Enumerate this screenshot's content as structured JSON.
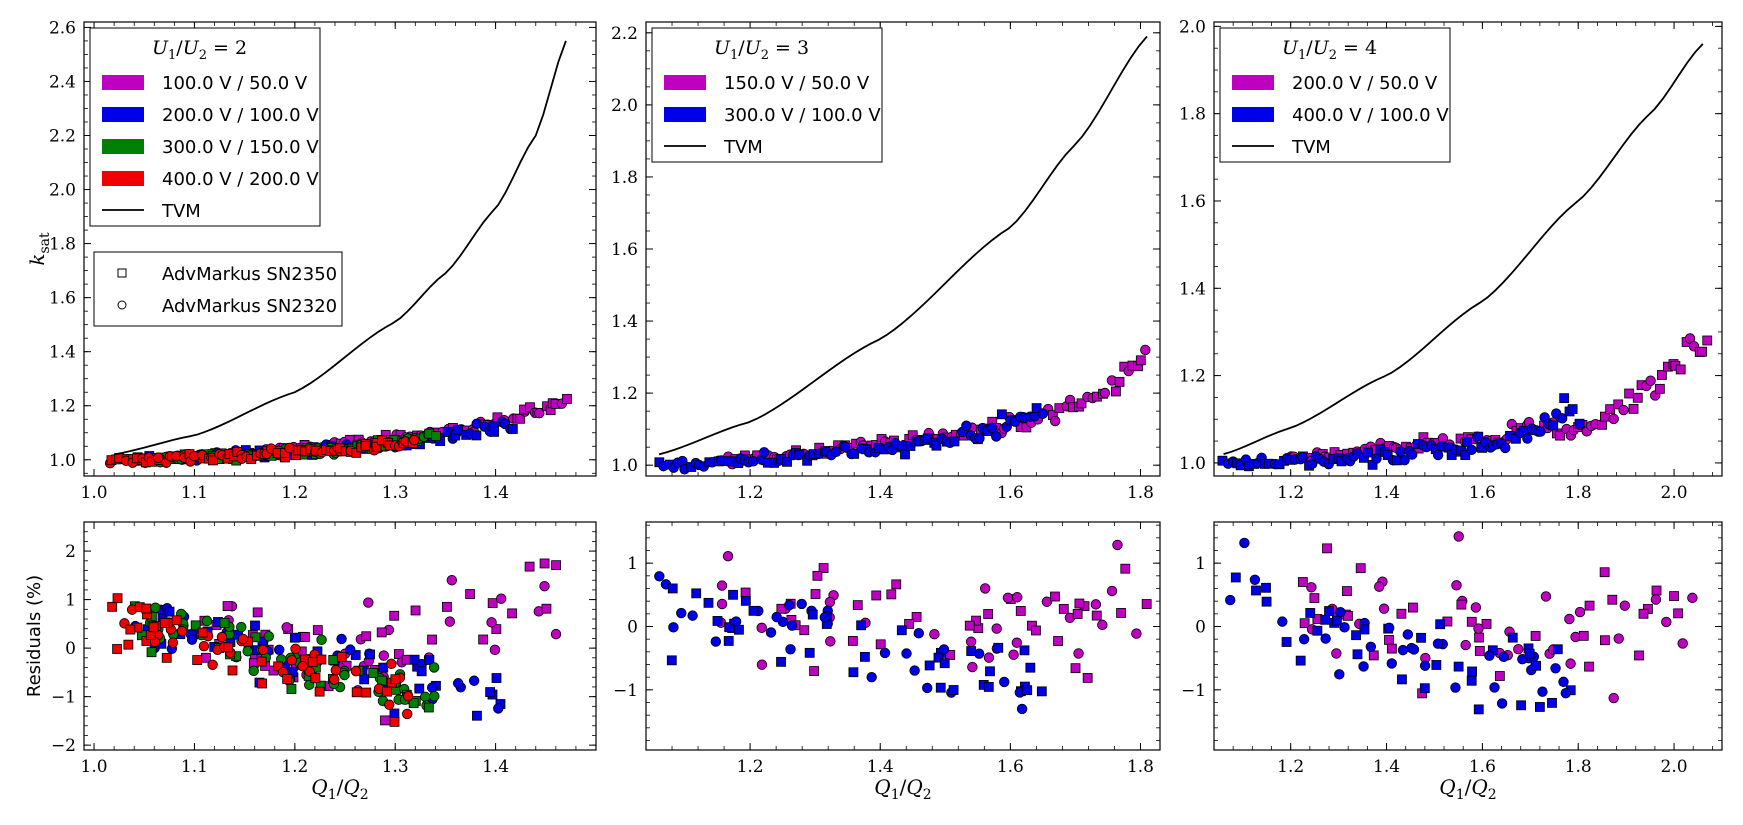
{
  "figure": {
    "xlabel": "Q1/Q2",
    "top_ylabel": "k_sat",
    "bottom_ylabel": "Residuals (%)",
    "marker_legend": {
      "items": [
        {
          "label": "AdvMarkus SN2350",
          "marker": "square"
        },
        {
          "label": "AdvMarkus SN2320",
          "marker": "circle"
        }
      ]
    }
  },
  "colors": {
    "magenta": "#c000c0",
    "blue": "#0000e8",
    "green": "#008000",
    "red": "#f00000",
    "tvm": "#000000"
  },
  "chart_data": [
    {
      "type": "scatter",
      "panel": "top-left",
      "title": "U1/U2 = 2",
      "xlim": [
        0.99,
        1.5
      ],
      "ylim": [
        0.94,
        2.62
      ],
      "xticks": [
        "1.0",
        "1.1",
        "1.2",
        "1.3",
        "1.4"
      ],
      "yticks": [
        "1.0",
        "1.2",
        "1.4",
        "1.6",
        "1.8",
        "2.0",
        "2.2",
        "2.4",
        "2.6"
      ],
      "ylabel": "k_sat",
      "legend_position": "top-left",
      "series": [
        {
          "name": "100.0 V / 50.0 V",
          "color": "magenta",
          "x_range": [
            1.1,
            1.47
          ],
          "shape": "magenta2"
        },
        {
          "name": "200.0 V / 100.0 V",
          "color": "blue",
          "x_range": [
            1.03,
            1.42
          ],
          "shape": "blue2"
        },
        {
          "name": "300.0 V / 150.0 V",
          "color": "green",
          "x_range": [
            1.04,
            1.34
          ],
          "shape": "green2"
        },
        {
          "name": "400.0 V / 200.0 V",
          "color": "red",
          "x_range": [
            1.015,
            1.32
          ],
          "shape": "red2"
        }
      ],
      "tvm": {
        "name": "TVM",
        "x": [
          1.02,
          1.1,
          1.2,
          1.3,
          1.35,
          1.4,
          1.44,
          1.47
        ],
        "y": [
          1.02,
          1.09,
          1.25,
          1.51,
          1.69,
          1.93,
          2.2,
          2.55
        ]
      }
    },
    {
      "type": "scatter",
      "panel": "top-middle",
      "title": "U1/U2 = 3",
      "xlim": [
        1.04,
        1.83
      ],
      "ylim": [
        0.97,
        2.23
      ],
      "xticks": [
        "1.2",
        "1.4",
        "1.6",
        "1.8"
      ],
      "yticks": [
        "1.0",
        "1.2",
        "1.4",
        "1.6",
        "1.8",
        "2.0",
        "2.2"
      ],
      "legend_position": "top-left",
      "series": [
        {
          "name": "150.0 V / 50.0 V",
          "color": "magenta",
          "x_range": [
            1.15,
            1.81
          ],
          "shape": "magenta3"
        },
        {
          "name": "300.0 V / 100.0 V",
          "color": "blue",
          "x_range": [
            1.06,
            1.65
          ],
          "shape": "blue3"
        }
      ],
      "tvm": {
        "name": "TVM",
        "x": [
          1.06,
          1.2,
          1.4,
          1.6,
          1.7,
          1.81
        ],
        "y": [
          1.03,
          1.12,
          1.35,
          1.66,
          1.89,
          2.19
        ]
      }
    },
    {
      "type": "scatter",
      "panel": "top-right",
      "title": "U1/U2 = 4",
      "xlim": [
        1.04,
        2.1
      ],
      "ylim": [
        0.97,
        2.01
      ],
      "xticks": [
        "1.2",
        "1.4",
        "1.6",
        "1.8",
        "2.0"
      ],
      "yticks": [
        "1.0",
        "1.2",
        "1.4",
        "1.6",
        "1.8",
        "2.0"
      ],
      "legend_position": "top-left",
      "series": [
        {
          "name": "200.0 V / 50.0 V",
          "color": "magenta",
          "x_range": [
            1.2,
            2.07
          ],
          "shape": "magenta4"
        },
        {
          "name": "400.0 V / 100.0 V",
          "color": "blue",
          "x_range": [
            1.06,
            1.8
          ],
          "shape": "blue4"
        }
      ],
      "tvm": {
        "name": "TVM",
        "x": [
          1.06,
          1.2,
          1.4,
          1.6,
          1.8,
          1.95,
          2.06
        ],
        "y": [
          1.02,
          1.08,
          1.2,
          1.37,
          1.6,
          1.8,
          1.96
        ]
      }
    },
    {
      "type": "scatter",
      "panel": "bottom-left",
      "xlim": [
        0.99,
        1.5
      ],
      "ylim": [
        -2.1,
        2.6
      ],
      "xticks": [
        "1.0",
        "1.1",
        "1.2",
        "1.3",
        "1.4"
      ],
      "yticks": [
        "−2",
        "−1",
        "0",
        "1",
        "2"
      ],
      "xlabel": "Q1/Q2",
      "ylabel": "Residuals (%)",
      "series": [
        {
          "name": "100.0 V / 50.0 V",
          "color": "magenta",
          "x_range": [
            1.1,
            1.47
          ],
          "spread": 1.1
        },
        {
          "name": "200.0 V / 100.0 V",
          "color": "blue",
          "x_range": [
            1.04,
            1.42
          ],
          "spread": 0.7
        },
        {
          "name": "300.0 V / 150.0 V",
          "color": "green",
          "x_range": [
            1.04,
            1.34
          ],
          "spread": 0.5
        },
        {
          "name": "400.0 V / 200.0 V",
          "color": "red",
          "x_range": [
            1.015,
            1.32
          ],
          "spread": 0.5
        }
      ]
    },
    {
      "type": "scatter",
      "panel": "bottom-middle",
      "xlim": [
        1.04,
        1.83
      ],
      "ylim": [
        -1.95,
        1.65
      ],
      "xticks": [
        "1.2",
        "1.4",
        "1.6",
        "1.8"
      ],
      "yticks": [
        "−1",
        "0",
        "1"
      ],
      "xlabel": "Q1/Q2",
      "series": [
        {
          "name": "150.0 V / 50.0 V",
          "color": "magenta",
          "x_range": [
            1.15,
            1.81
          ],
          "spread": 0.9
        },
        {
          "name": "300.0 V / 100.0 V",
          "color": "blue",
          "x_range": [
            1.06,
            1.65
          ],
          "spread": 0.65
        }
      ]
    },
    {
      "type": "scatter",
      "panel": "bottom-right",
      "xlim": [
        1.04,
        2.1
      ],
      "ylim": [
        -1.95,
        1.65
      ],
      "xticks": [
        "1.2",
        "1.4",
        "1.6",
        "1.8",
        "2.0"
      ],
      "yticks": [
        "−1",
        "0",
        "1"
      ],
      "xlabel": "Q1/Q2",
      "series": [
        {
          "name": "200.0 V / 50.0 V",
          "color": "magenta",
          "x_range": [
            1.2,
            2.07
          ],
          "spread": 0.9
        },
        {
          "name": "400.0 V / 100.0 V",
          "color": "blue",
          "x_range": [
            1.06,
            1.8
          ],
          "spread": 0.65
        }
      ]
    }
  ]
}
